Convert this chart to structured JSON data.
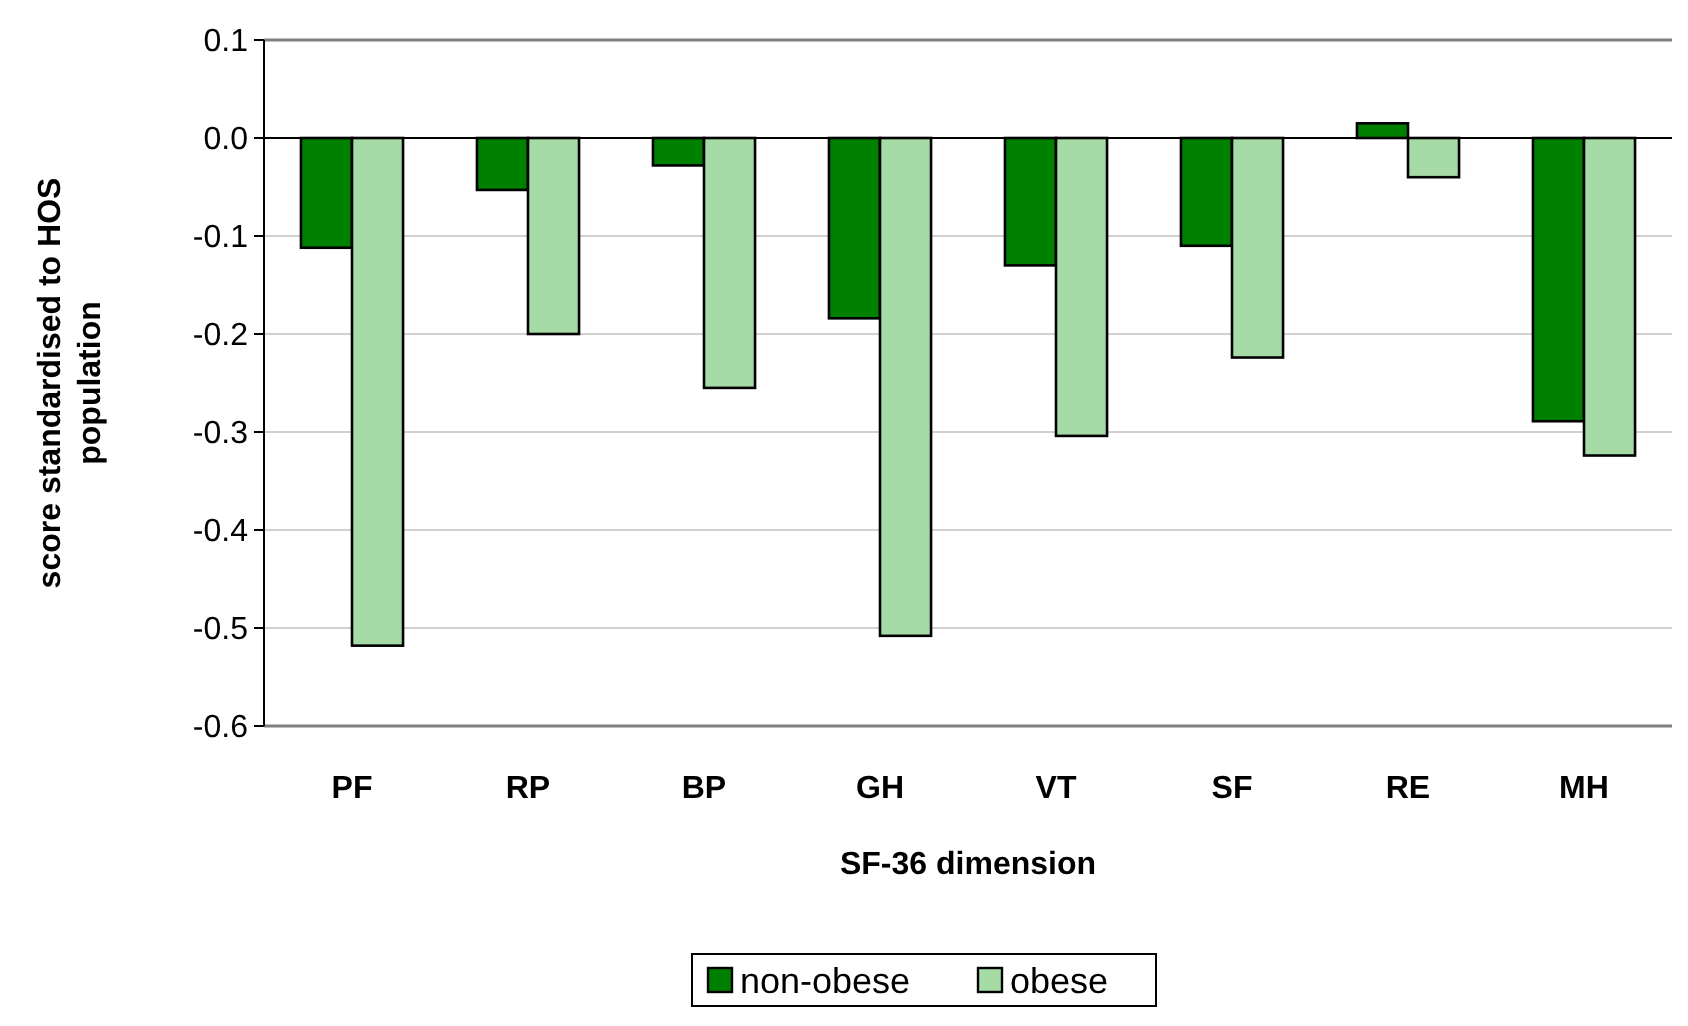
{
  "chart_data": {
    "type": "bar",
    "xlabel": "SF-36 dimension",
    "ylabel": "score standardised to HOS population",
    "categories": [
      "PF",
      "RP",
      "BP",
      "GH",
      "VT",
      "SF",
      "RE",
      "MH"
    ],
    "series": [
      {
        "name": "non-obese",
        "color": "#008000",
        "values": [
          -0.112,
          -0.053,
          -0.028,
          -0.184,
          -0.13,
          -0.11,
          0.015,
          -0.289
        ]
      },
      {
        "name": "obese",
        "color": "#a6dba6",
        "values": [
          -0.518,
          -0.2,
          -0.255,
          -0.508,
          -0.304,
          -0.224,
          -0.04,
          -0.324
        ]
      }
    ],
    "ylim": [
      -0.6,
      0.1
    ],
    "yticks": [
      {
        "value": -0.6,
        "label": "-0.6"
      },
      {
        "value": -0.5,
        "label": "-0.5"
      },
      {
        "value": -0.4,
        "label": "-0.4"
      },
      {
        "value": -0.3,
        "label": "-0.3"
      },
      {
        "value": -0.2,
        "label": "-0.2"
      },
      {
        "value": -0.1,
        "label": "-0.1"
      },
      {
        "value": 0,
        "label": "0.0"
      },
      {
        "value": 0.1,
        "label": "0.1"
      }
    ],
    "grid": "y",
    "legend": "bottom"
  }
}
